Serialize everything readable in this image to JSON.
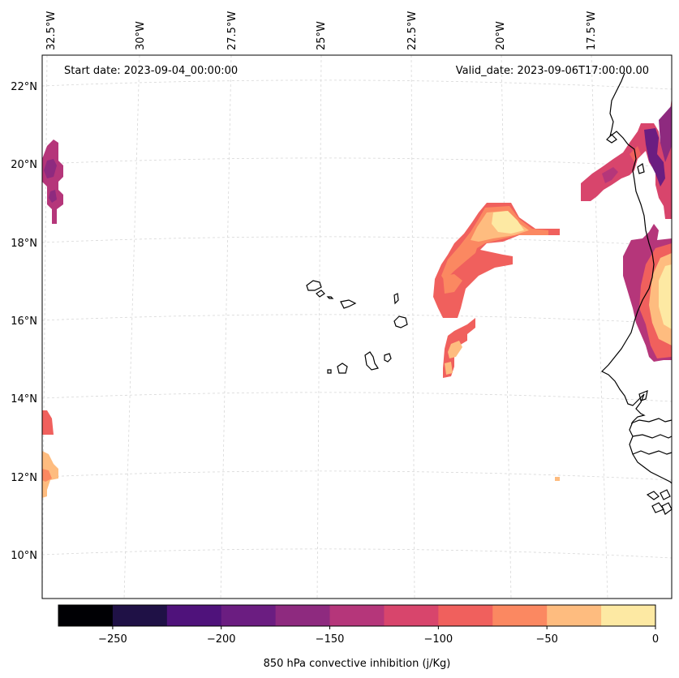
{
  "map": {
    "start_date_text": "Start date: 2023-09-04_00:00:00",
    "valid_date_text": "Valid_date: 2023-09-06T17:00:00.00",
    "lon_labels": [
      "32.5°W",
      "30°W",
      "27.5°W",
      "25°W",
      "22.5°W",
      "20°W",
      "17.5°W"
    ],
    "lat_labels": [
      "22°N",
      "20°N",
      "18°N",
      "16°N",
      "14°N",
      "12°N",
      "10°N"
    ],
    "colors": {
      "coast": "#000000",
      "grid": "#d0d0d0",
      "frame": "#000000"
    }
  },
  "colorbar": {
    "label": "850 hPa convective inhibition (j/Kg)",
    "ticks": [
      "−250",
      "−200",
      "−150",
      "−100",
      "−50",
      "0"
    ],
    "tick_values": [
      -250,
      -200,
      -150,
      -100,
      -50,
      0
    ],
    "range": [
      -275,
      0
    ],
    "colors": [
      "#000004",
      "#1f1146",
      "#4f127b",
      "#6b1d81",
      "#8e2a7f",
      "#b5367a",
      "#d8456c",
      "#f0605d",
      "#fb8861",
      "#febc7f",
      "#fde9a3"
    ]
  }
}
